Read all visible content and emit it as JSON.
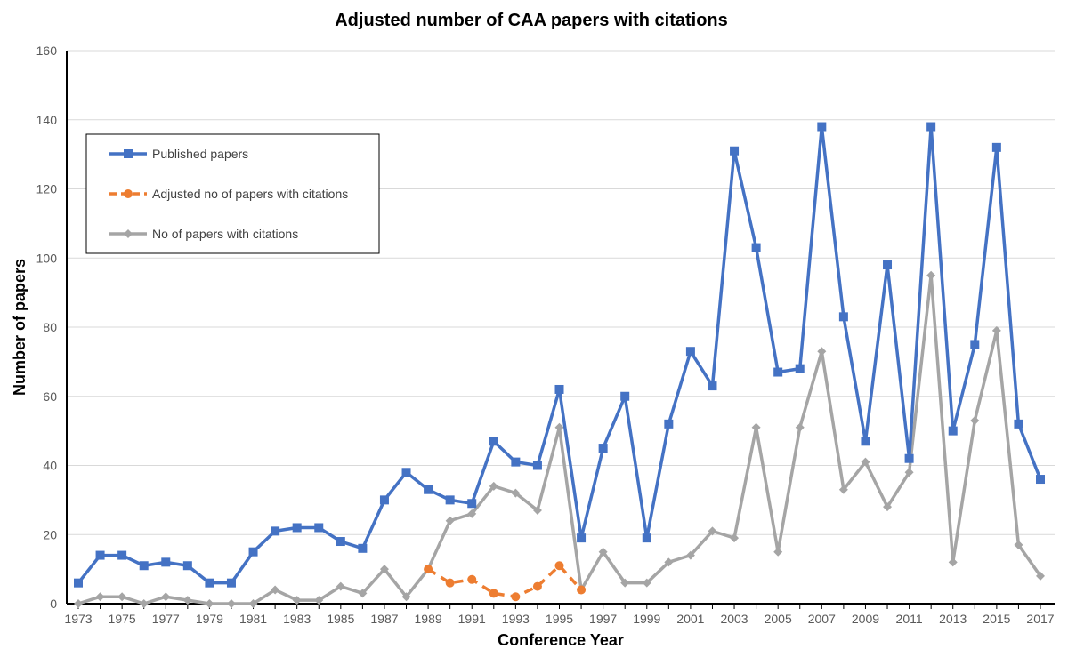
{
  "chart_data": {
    "type": "line",
    "title": "Adjusted number of CAA papers with citations",
    "xlabel": "Conference Year",
    "ylabel": "Number of papers",
    "ylim": [
      0,
      160
    ],
    "yticks": [
      0,
      20,
      40,
      60,
      80,
      100,
      120,
      140,
      160
    ],
    "xlim": [
      1973,
      2017
    ],
    "xtick_labels": [
      "1973",
      "1975",
      "1977",
      "1979",
      "1981",
      "1983",
      "1985",
      "1987",
      "1989",
      "1991",
      "1993",
      "1995",
      "1997",
      "1999",
      "2001",
      "2003",
      "2005",
      "2007",
      "2009",
      "2011",
      "2013",
      "2015",
      "2017"
    ],
    "grid": "horizontal",
    "legend_placement": "top-left",
    "series": [
      {
        "name": "Published papers",
        "color": "#4472C4",
        "marker": "square",
        "dash": "solid",
        "x": [
          1973,
          1974,
          1975,
          1976,
          1977,
          1978,
          1979,
          1980,
          1981,
          1982,
          1983,
          1984,
          1985,
          1986,
          1987,
          1988,
          1989,
          1990,
          1991,
          1992,
          1993,
          1994,
          1995,
          1996,
          1997,
          1998,
          1999,
          2000,
          2001,
          2002,
          2003,
          2004,
          2005,
          2006,
          2007,
          2008,
          2009,
          2010,
          2011,
          2012,
          2013,
          2014,
          2015,
          2016,
          2017
        ],
        "values": [
          6,
          14,
          14,
          11,
          12,
          11,
          6,
          6,
          15,
          21,
          22,
          22,
          18,
          16,
          30,
          38,
          33,
          30,
          29,
          47,
          41,
          40,
          62,
          19,
          45,
          60,
          19,
          52,
          73,
          63,
          131,
          103,
          67,
          68,
          138,
          83,
          47,
          98,
          42,
          138,
          50,
          75,
          132,
          52,
          36
        ]
      },
      {
        "name": "Adjusted no of papers with citations",
        "color": "#ED7D31",
        "marker": "circle",
        "dash": "dashed",
        "x": [
          1989,
          1990,
          1991,
          1992,
          1993,
          1994,
          1995,
          1996
        ],
        "values": [
          10,
          6,
          7,
          3,
          2,
          5,
          11,
          4
        ]
      },
      {
        "name": "No of papers with citations",
        "color": "#A5A5A5",
        "marker": "diamond",
        "dash": "solid",
        "x": [
          1973,
          1974,
          1975,
          1976,
          1977,
          1978,
          1979,
          1980,
          1981,
          1982,
          1983,
          1984,
          1985,
          1986,
          1987,
          1988,
          1989,
          1990,
          1991,
          1992,
          1993,
          1994,
          1995,
          1996,
          1997,
          1998,
          1999,
          2000,
          2001,
          2002,
          2003,
          2004,
          2005,
          2006,
          2007,
          2008,
          2009,
          2010,
          2011,
          2012,
          2013,
          2014,
          2015,
          2016,
          2017
        ],
        "values": [
          0,
          2,
          2,
          0,
          2,
          1,
          0,
          0,
          0,
          4,
          1,
          1,
          5,
          3,
          10,
          2,
          10,
          24,
          26,
          34,
          32,
          27,
          51,
          4,
          15,
          6,
          6,
          12,
          14,
          21,
          19,
          51,
          15,
          51,
          73,
          33,
          41,
          28,
          38,
          95,
          12,
          53,
          79,
          17,
          8
        ]
      }
    ]
  }
}
